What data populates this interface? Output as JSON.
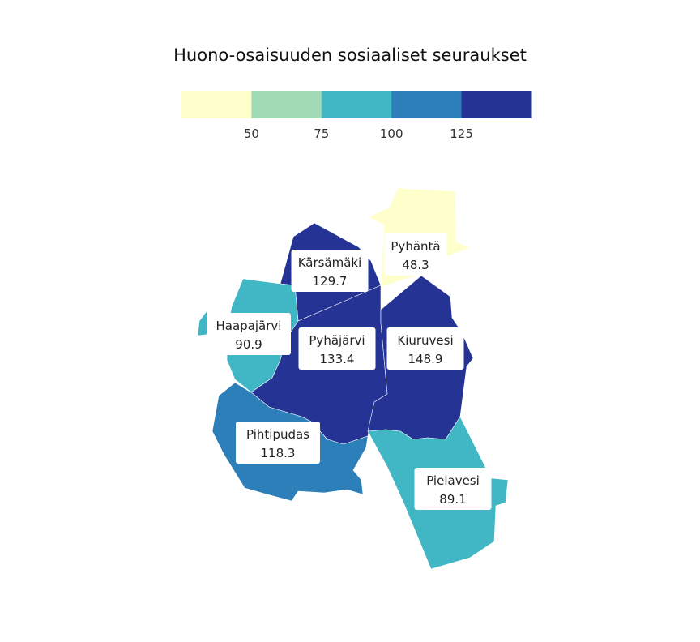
{
  "chart_data": {
    "type": "choropleth",
    "title": "Huono-osaisuuden sosiaaliset seuraukset",
    "legend": {
      "placement": "top",
      "colors": [
        "#ffffcc",
        "#a1dab4",
        "#41b6c4",
        "#2c7fb8",
        "#253494"
      ],
      "ticks": [
        "50",
        "75",
        "100",
        "125"
      ]
    },
    "regions": [
      {
        "name": "Pyhäntä",
        "value": 48.3
      },
      {
        "name": "Kärsämäki",
        "value": 129.7
      },
      {
        "name": "Haapajärvi",
        "value": 90.9
      },
      {
        "name": "Pyhäjärvi",
        "value": 133.4
      },
      {
        "name": "Kiuruvesi",
        "value": 148.9
      },
      {
        "name": "Pihtipudas",
        "value": 118.3
      },
      {
        "name": "Pielavesi",
        "value": 89.1
      }
    ]
  }
}
